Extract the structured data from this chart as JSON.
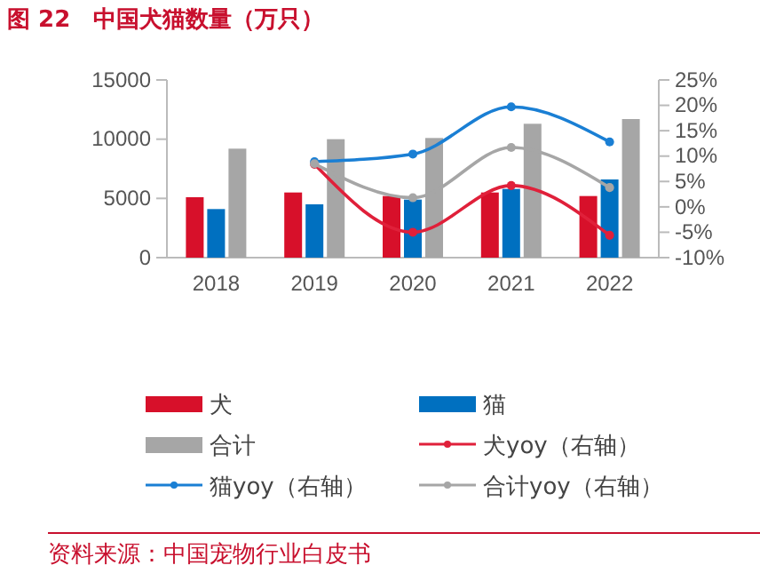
{
  "chart_data": {
    "type": "bar",
    "title": "图 22　中国犬猫数量（万只）",
    "categories": [
      "2018",
      "2019",
      "2020",
      "2021",
      "2022"
    ],
    "series": [
      {
        "name": "犬",
        "color": "#d7102a",
        "values": [
          5100,
          5500,
          5200,
          5500,
          5200
        ]
      },
      {
        "name": "猫",
        "color": "#0070c0",
        "values": [
          4100,
          4500,
          4900,
          5800,
          6600
        ]
      },
      {
        "name": "合计",
        "color": "#a6a6a6",
        "values": [
          9200,
          10000,
          10100,
          11300,
          11700
        ]
      },
      {
        "name": "犬yoy（右轴）",
        "type": "line",
        "axis": "y2",
        "color": "#e0203a",
        "values": [
          null,
          8.4,
          -5.0,
          4.2,
          -5.6
        ]
      },
      {
        "name": "猫yoy（右轴）",
        "type": "line",
        "axis": "y2",
        "color": "#1a7fd4",
        "values": [
          null,
          8.9,
          10.4,
          19.7,
          12.8
        ]
      },
      {
        "name": "合计yoy（右轴）",
        "type": "line",
        "axis": "y2",
        "color": "#a6a6a6",
        "values": [
          null,
          8.5,
          1.8,
          11.7,
          3.8
        ]
      }
    ],
    "ylim": [
      0,
      15000
    ],
    "yticks": [
      0,
      5000,
      10000,
      15000
    ],
    "y2lim": [
      -10,
      25
    ],
    "y2ticks": [
      {
        "value": -10,
        "label": "-10%"
      },
      {
        "value": -5,
        "label": "-5%"
      },
      {
        "value": 0,
        "label": "0%"
      },
      {
        "value": 5,
        "label": "5%"
      },
      {
        "value": 10,
        "label": "10%"
      },
      {
        "value": 15,
        "label": "15%"
      },
      {
        "value": 20,
        "label": "20%"
      },
      {
        "value": 25,
        "label": "25%"
      }
    ],
    "grid": false,
    "legend": "bottom",
    "marker": "circle",
    "line_style": "solid",
    "annotations": [
      "资料来源：中国宠物行业白皮书"
    ]
  }
}
